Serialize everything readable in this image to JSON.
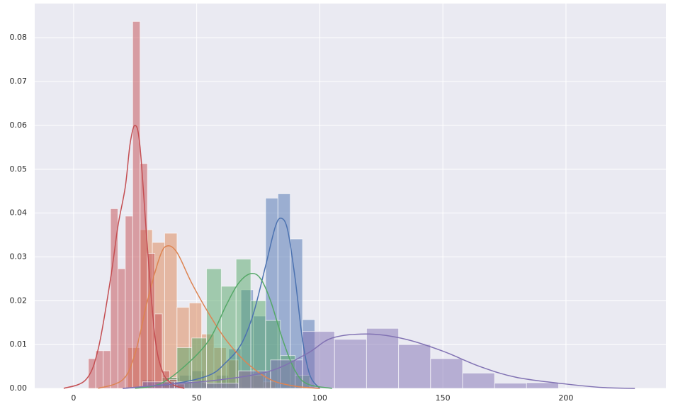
{
  "chart_data": {
    "type": "histogram",
    "xlim": [
      -15.8,
      240.6
    ],
    "ylim": [
      0,
      0.0878
    ],
    "xticks": [
      0,
      50,
      100,
      150,
      200
    ],
    "yticks": [
      {
        "value": 0,
        "label": "0.00"
      },
      0.01,
      0.02,
      0.03,
      0.04,
      0.05,
      0.06,
      0.07,
      0.08
    ],
    "grid": true,
    "series": [
      {
        "color": "#4c72b0",
        "bins": [
          28,
          33,
          38,
          43,
          48,
          53,
          58,
          63,
          68,
          73,
          78,
          83,
          88,
          93,
          98
        ],
        "values": [
          0.002,
          0.0015,
          0.0025,
          0.003,
          0.004,
          0.001,
          0.003,
          0.009,
          0.0225,
          0.0165,
          0.0434,
          0.0444,
          0.0341,
          0.0157
        ],
        "kde_x": [
          20,
          40,
          55,
          62,
          68,
          73,
          78,
          82,
          84.5,
          87,
          90,
          93,
          96,
          100
        ],
        "kde_y": [
          0,
          0.001,
          0.003,
          0.006,
          0.01,
          0.017,
          0.028,
          0.037,
          0.0388,
          0.036,
          0.025,
          0.011,
          0.003,
          0
        ]
      },
      {
        "color": "#dd8452",
        "bins": [
          22,
          27,
          32,
          37,
          42,
          47,
          52,
          57,
          62,
          67,
          72,
          77,
          82
        ],
        "values": [
          0.0093,
          0.0362,
          0.0333,
          0.0354,
          0.0185,
          0.0195,
          0.0124,
          0.0093,
          0.0065,
          0.004,
          0.003,
          0.0015
        ],
        "kde_x": [
          10,
          20,
          25,
          30,
          35,
          38,
          42,
          48,
          55,
          62,
          70,
          80,
          90,
          100
        ],
        "kde_y": [
          0,
          0.002,
          0.008,
          0.02,
          0.03,
          0.0325,
          0.031,
          0.024,
          0.017,
          0.011,
          0.006,
          0.002,
          0.0005,
          0
        ]
      },
      {
        "color": "#55a868",
        "bins": [
          36,
          42,
          48,
          54,
          60,
          66,
          72,
          78,
          84,
          90,
          96
        ],
        "values": [
          0.0025,
          0.0093,
          0.0115,
          0.0273,
          0.0233,
          0.0295,
          0.02,
          0.0155,
          0.0075,
          0.003
        ],
        "kde_x": [
          25,
          35,
          45,
          55,
          62,
          67,
          72,
          76,
          80,
          85,
          90,
          95,
          105
        ],
        "kde_y": [
          0,
          0.001,
          0.005,
          0.011,
          0.019,
          0.024,
          0.0262,
          0.025,
          0.02,
          0.011,
          0.004,
          0.001,
          0
        ]
      },
      {
        "color": "#c44e52",
        "bins": [
          6,
          9,
          12,
          15,
          18,
          21,
          24,
          27,
          30,
          33,
          36,
          39,
          42,
          45
        ],
        "values": [
          0.0068,
          0.0086,
          0.0086,
          0.041,
          0.0273,
          0.0393,
          0.0837,
          0.0513,
          0.0308,
          0.017,
          0.004,
          0.002,
          0.001
        ],
        "kde_x": [
          -4,
          5,
          10,
          15,
          18,
          21,
          23,
          25,
          27,
          30,
          33,
          36,
          40,
          45
        ],
        "kde_y": [
          0,
          0.002,
          0.009,
          0.025,
          0.037,
          0.046,
          0.056,
          0.06,
          0.055,
          0.032,
          0.012,
          0.004,
          0.001,
          0
        ]
      },
      {
        "color": "#8172b3",
        "bins": [
          28,
          41,
          54,
          67,
          80,
          93,
          106,
          119,
          132,
          145,
          158,
          171,
          184,
          197
        ],
        "values": [
          0.0015,
          0.0015,
          0.0012,
          0.004,
          0.0065,
          0.013,
          0.0112,
          0.0137,
          0.01,
          0.0068,
          0.0035,
          0.0012,
          0.0013
        ],
        "kde_x": [
          20,
          40,
          60,
          80,
          95,
          105,
          120,
          135,
          150,
          165,
          180,
          200,
          215,
          228
        ],
        "kde_y": [
          0,
          0.001,
          0.002,
          0.004,
          0.008,
          0.0115,
          0.0124,
          0.0112,
          0.0085,
          0.005,
          0.0025,
          0.001,
          0.0002,
          0
        ]
      }
    ]
  }
}
